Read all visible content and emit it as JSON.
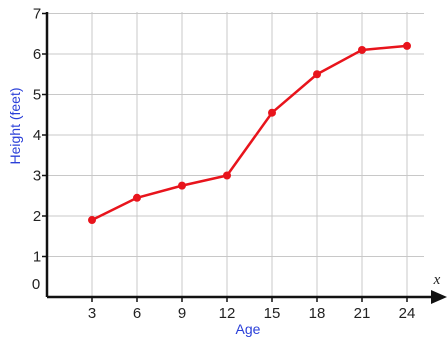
{
  "chart_data": {
    "type": "line",
    "xlabel": "Age",
    "ylabel": "Height (feet)",
    "x_axis_letter": "x",
    "origin_label": "0",
    "x_ticks": [
      3,
      6,
      9,
      12,
      15,
      18,
      21,
      24
    ],
    "y_ticks": [
      1,
      2,
      3,
      4,
      5,
      6,
      7
    ],
    "xlim": [
      0,
      24
    ],
    "ylim": [
      0,
      7
    ],
    "grid": true,
    "series": [
      {
        "x": [
          3,
          6,
          9,
          12,
          15,
          18,
          21,
          24
        ],
        "y": [
          1.9,
          2.45,
          2.75,
          3.0,
          4.55,
          5.5,
          6.1,
          6.2
        ]
      }
    ],
    "colors": {
      "line": "#e8141c",
      "axis_title": "#2a3fd8",
      "grid": "#c8c8c8",
      "axis": "#111111"
    }
  }
}
